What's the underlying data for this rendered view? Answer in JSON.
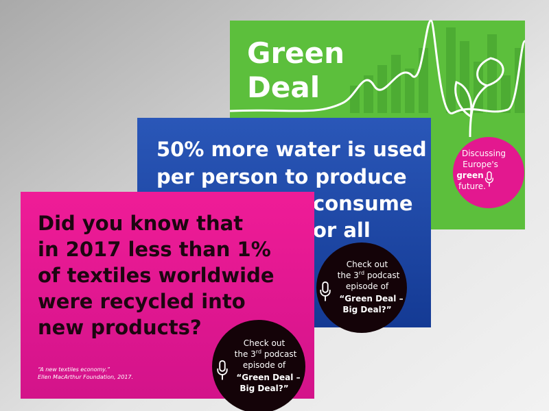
{
  "green_card": {
    "title_lines": [
      "Green",
      "Deal"
    ],
    "badge": {
      "lines": [
        "Discussing",
        "Europe's"
      ],
      "bold": "green",
      "last": "future."
    }
  },
  "blue_card": {
    "lines": [
      "50% more water is used",
      "per person to produce"
    ],
    "fragments": [
      "consume",
      "or all"
    ],
    "badge": {
      "line1": "Check out",
      "line2a": "the 3",
      "line2sup": "rd",
      "line2b": " podcast",
      "line3": "episode of",
      "quote1": "“Green Deal –",
      "quote2": "Big Deal?”"
    }
  },
  "pink_card": {
    "lines": [
      "Did you know that",
      "in 2017 less than 1%",
      "of textiles worldwide",
      "were recycled into",
      "new products?"
    ],
    "source_title": "“A new textiles economy.”",
    "source": "Ellen MacArthur Foundation, 2017.",
    "badge": {
      "line1": "Check out",
      "line2a": "the 3",
      "line2sup": "rd",
      "line2b": " podcast",
      "line3": "episode of",
      "quote1": "“Green Deal –",
      "quote2": "Big Deal?”"
    }
  }
}
